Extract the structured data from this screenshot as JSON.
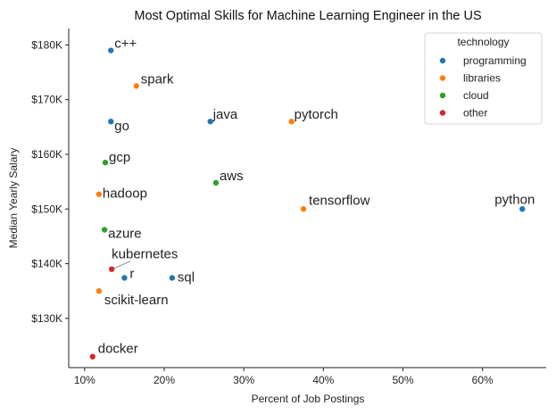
{
  "chart_data": {
    "type": "scatter",
    "title": "Most Optimal Skills for Machine Learning Engineer in the US",
    "xlabel": "Percent of Job Postings",
    "ylabel": "Median Yearly Salary",
    "xlim": [
      0.08,
      0.68
    ],
    "ylim": [
      121000,
      183000
    ],
    "x_ticks": [
      0.1,
      0.2,
      0.3,
      0.4,
      0.5,
      0.6
    ],
    "x_tick_labels": [
      "10%",
      "20%",
      "30%",
      "40%",
      "50%",
      "60%"
    ],
    "y_ticks": [
      130000,
      140000,
      150000,
      160000,
      170000,
      180000
    ],
    "y_tick_labels": [
      "$130K",
      "$140K",
      "$150K",
      "$160K",
      "$170K",
      "$180K"
    ],
    "grid": false,
    "legend": {
      "title": "technology",
      "position": "top-right",
      "entries": [
        {
          "name": "programming",
          "color": "#1f77b4"
        },
        {
          "name": "libraries",
          "color": "#ff7f0e"
        },
        {
          "name": "cloud",
          "color": "#2ca02c"
        },
        {
          "name": "other",
          "color": "#d62728"
        }
      ]
    },
    "points": [
      {
        "label": "c++",
        "x": 0.133,
        "y": 179000,
        "group": "programming"
      },
      {
        "label": "spark",
        "x": 0.165,
        "y": 172500,
        "group": "libraries"
      },
      {
        "label": "go",
        "x": 0.133,
        "y": 166000,
        "group": "programming"
      },
      {
        "label": "java",
        "x": 0.258,
        "y": 166000,
        "group": "programming"
      },
      {
        "label": "pytorch",
        "x": 0.36,
        "y": 166000,
        "group": "libraries"
      },
      {
        "label": "gcp",
        "x": 0.126,
        "y": 158500,
        "group": "cloud"
      },
      {
        "label": "aws",
        "x": 0.265,
        "y": 154800,
        "group": "cloud"
      },
      {
        "label": "hadoop",
        "x": 0.118,
        "y": 152700,
        "group": "libraries"
      },
      {
        "label": "tensorflow",
        "x": 0.375,
        "y": 150000,
        "group": "libraries"
      },
      {
        "label": "python",
        "x": 0.65,
        "y": 150000,
        "group": "programming"
      },
      {
        "label": "azure",
        "x": 0.125,
        "y": 146200,
        "group": "cloud"
      },
      {
        "label": "kubernetes",
        "x": 0.134,
        "y": 139000,
        "group": "other"
      },
      {
        "label": "r",
        "x": 0.15,
        "y": 137400,
        "group": "programming"
      },
      {
        "label": "sql",
        "x": 0.21,
        "y": 137400,
        "group": "programming"
      },
      {
        "label": "scikit-learn",
        "x": 0.118,
        "y": 135000,
        "group": "libraries"
      },
      {
        "label": "docker",
        "x": 0.11,
        "y": 123000,
        "group": "other"
      }
    ]
  }
}
